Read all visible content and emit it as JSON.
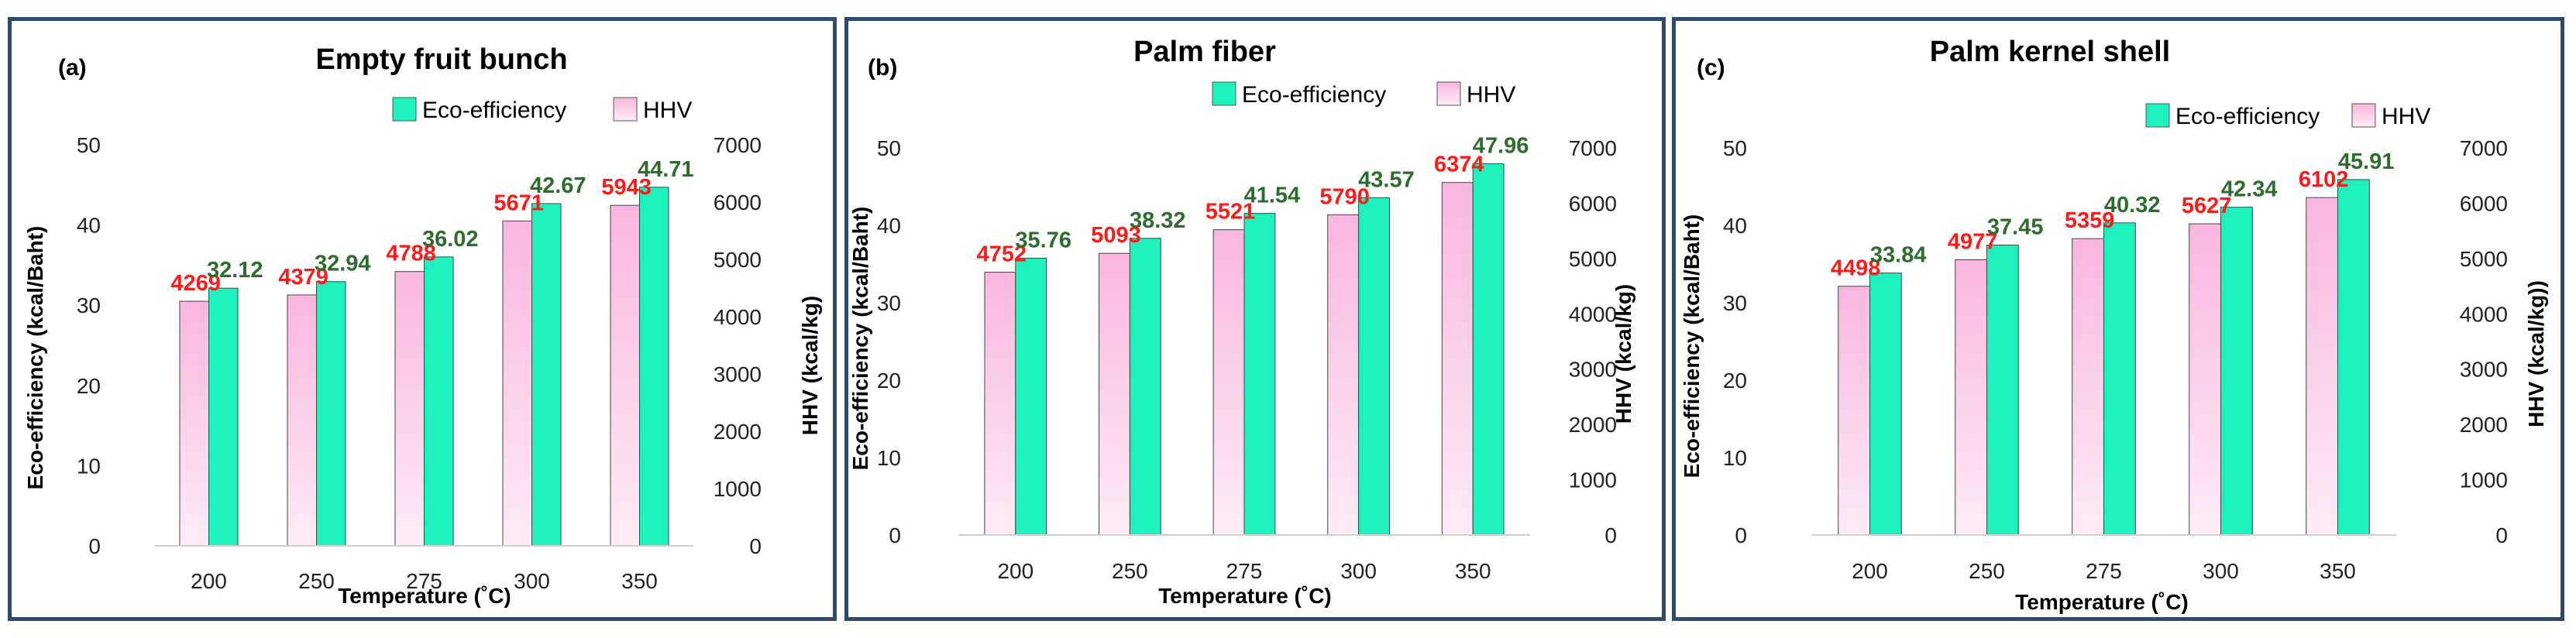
{
  "colors": {
    "hhv_top": "#F9B6E0",
    "hhv_bottom": "#FDEBF6",
    "eco": "#1DF2BE",
    "hhv_label": "#FF1A1A",
    "eco_label": "#2E6B2E",
    "border": "#2F4A6B"
  },
  "chart_data": [
    {
      "type": "bar",
      "panel_label": "(a)",
      "title": "Empty fruit bunch",
      "categories": [
        "200",
        "250",
        "275",
        "300",
        "350"
      ],
      "series": [
        {
          "name": "HHV",
          "axis": "right",
          "values": [
            4269,
            4379,
            4788,
            5671,
            5943
          ]
        },
        {
          "name": "Eco-efficiency",
          "axis": "left",
          "values": [
            32.12,
            32.94,
            36.02,
            42.67,
            44.71
          ]
        }
      ],
      "legend": [
        "Eco-efficiency",
        "HHV"
      ],
      "xlabel": "Temperature (˚C)",
      "ylabel": "Eco-efficiency (kcal/Baht)",
      "y2label": "HHV (kcal/kg)",
      "ylim": [
        0,
        50
      ],
      "y2lim": [
        0,
        7000
      ],
      "yticks": [
        "0",
        "10",
        "20",
        "30",
        "40",
        "50"
      ],
      "y2ticks": [
        "0",
        "1000",
        "2000",
        "3000",
        "4000",
        "5000",
        "6000",
        "7000"
      ]
    },
    {
      "type": "bar",
      "panel_label": "(b)",
      "title": "Palm fiber",
      "categories": [
        "200",
        "250",
        "275",
        "300",
        "350"
      ],
      "series": [
        {
          "name": "HHV",
          "axis": "right",
          "values": [
            4752,
            5093,
            5521,
            5790,
            6374
          ]
        },
        {
          "name": "Eco-efficiency",
          "axis": "left",
          "values": [
            35.76,
            38.32,
            41.54,
            43.57,
            47.96
          ]
        }
      ],
      "legend": [
        "Eco-efficiency",
        "HHV"
      ],
      "xlabel": "Temperature (˚C)",
      "ylabel": "Eco-efficiency (kcal/Baht)",
      "y2label": "HHV (kcal/kg)",
      "ylim": [
        0,
        50
      ],
      "y2lim": [
        0,
        7000
      ],
      "yticks": [
        "0",
        "10",
        "20",
        "30",
        "40",
        "50"
      ],
      "y2ticks": [
        "0",
        "1000",
        "2000",
        "3000",
        "4000",
        "5000",
        "6000",
        "7000"
      ]
    },
    {
      "type": "bar",
      "panel_label": "(c)",
      "title": "Palm kernel shell",
      "categories": [
        "200",
        "250",
        "275",
        "300",
        "350"
      ],
      "series": [
        {
          "name": "HHV",
          "axis": "right",
          "values": [
            4498,
            4977,
            5359,
            5627,
            6102
          ]
        },
        {
          "name": "Eco-efficiency",
          "axis": "left",
          "values": [
            33.84,
            37.45,
            40.32,
            42.34,
            45.91
          ]
        }
      ],
      "legend": [
        "Eco-efficiency",
        "HHV"
      ],
      "xlabel": "Temperature (˚C)",
      "ylabel": "Eco-efficiency (kcal/Baht)",
      "y2label": "HHV (kcal/kg))",
      "ylim": [
        0,
        50
      ],
      "y2lim": [
        0,
        7000
      ],
      "yticks": [
        "0",
        "10",
        "20",
        "30",
        "40",
        "50"
      ],
      "y2ticks": [
        "0",
        "1000",
        "2000",
        "3000",
        "4000",
        "5000",
        "6000",
        "7000"
      ]
    }
  ]
}
